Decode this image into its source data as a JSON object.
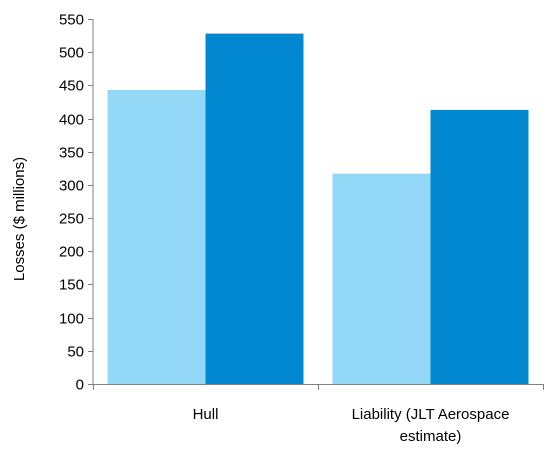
{
  "chart_data": {
    "type": "bar",
    "title": "",
    "xlabel": "",
    "ylabel": "Losses ($ millions)",
    "ylim": [
      0,
      550
    ],
    "yticks": [
      0,
      50,
      100,
      150,
      200,
      250,
      300,
      350,
      400,
      450,
      500,
      550
    ],
    "grid": false,
    "legend": "none",
    "categories": [
      [
        "Hull"
      ],
      [
        "Liability (JLT Aerospace",
        "estimate)"
      ]
    ],
    "series": [
      {
        "values": [
          443,
          317
        ],
        "color": "#93d8f6"
      },
      {
        "values": [
          528,
          413
        ],
        "color": "#0288d1"
      }
    ],
    "axis_color": "#808080"
  }
}
